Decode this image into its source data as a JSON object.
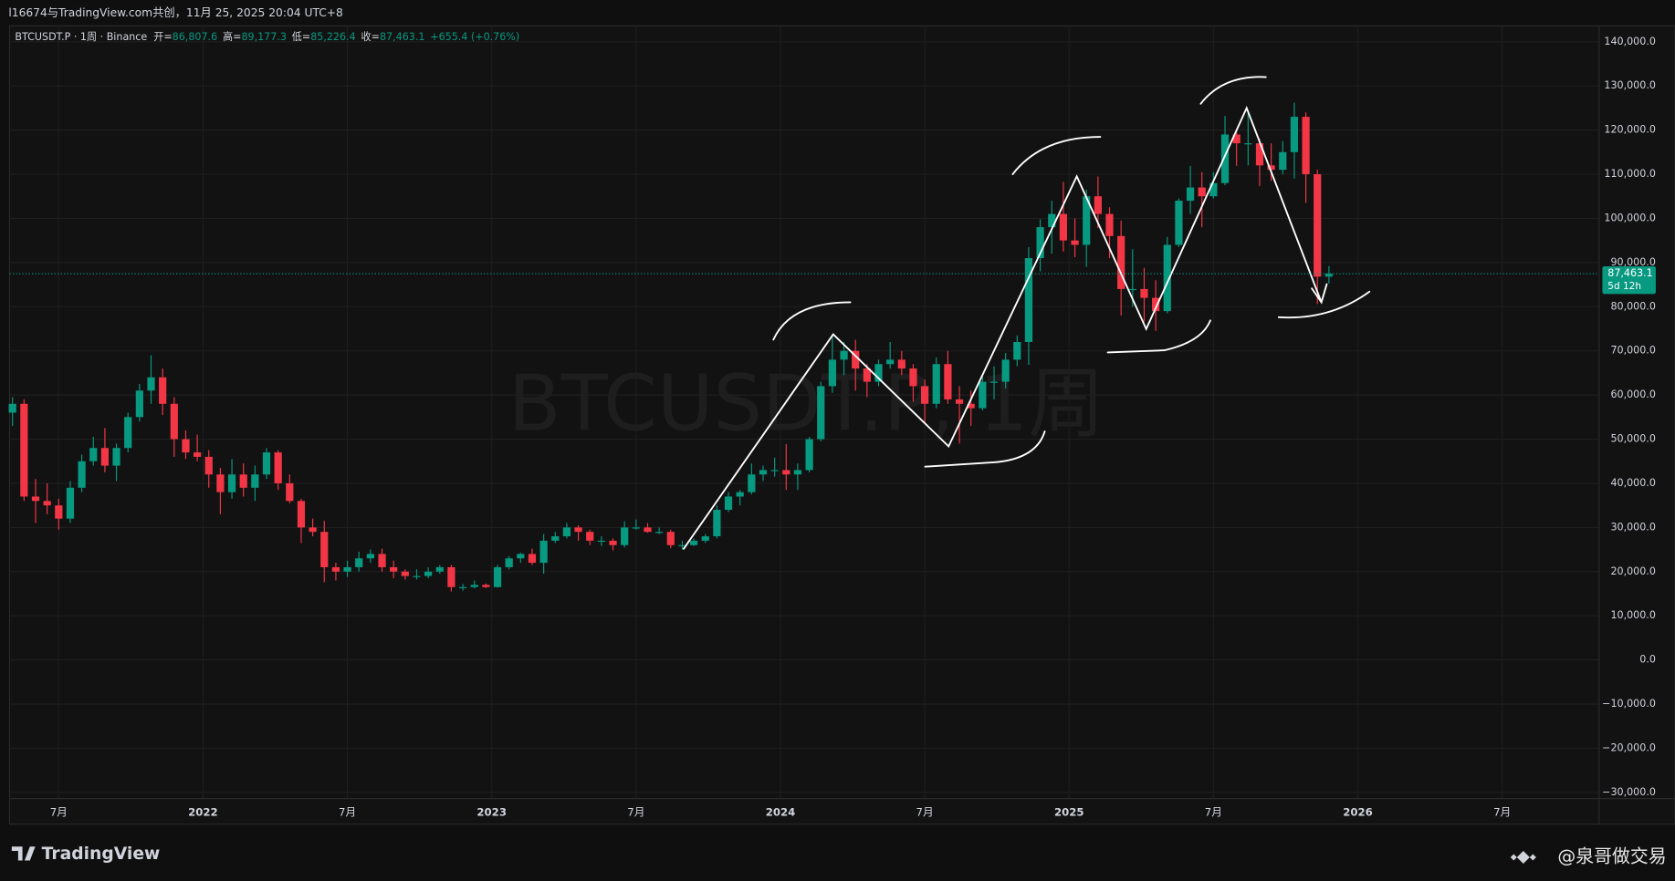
{
  "header": {
    "title": "l16674与TradingView.com共创，11月 25, 2025 20:04 UTC+8"
  },
  "chart_data": {
    "type": "candlestick",
    "symbol": "BTCUSDT.P · 1周 · Binance",
    "ohlc_legend": [
      {
        "label": "开=",
        "value": "86,807.6"
      },
      {
        "label": "高=",
        "value": "89,177.3"
      },
      {
        "label": "低=",
        "value": "85,226.4"
      },
      {
        "label": "收=",
        "value": "87,463.1"
      }
    ],
    "change": "+655.4 (+0.76%)",
    "watermark": "BTCUSDT.P, 1周",
    "up_color": "#089981",
    "down_color": "#f23645",
    "x": [
      2021.34,
      2021.38,
      2021.42,
      2021.46,
      2021.5,
      2021.54,
      2021.58,
      2021.62,
      2021.66,
      2021.7,
      2021.74,
      2021.78,
      2021.82,
      2021.86,
      2021.9,
      2021.94,
      2021.98,
      2022.02,
      2022.06,
      2022.1,
      2022.14,
      2022.18,
      2022.22,
      2022.26,
      2022.3,
      2022.34,
      2022.38,
      2022.42,
      2022.46,
      2022.5,
      2022.54,
      2022.58,
      2022.62,
      2022.66,
      2022.7,
      2022.74,
      2022.78,
      2022.82,
      2022.86,
      2022.9,
      2022.94,
      2022.98,
      2023.02,
      2023.06,
      2023.1,
      2023.14,
      2023.18,
      2023.22,
      2023.26,
      2023.3,
      2023.34,
      2023.38,
      2023.42,
      2023.46,
      2023.5,
      2023.54,
      2023.58,
      2023.62,
      2023.66,
      2023.7,
      2023.74,
      2023.78,
      2023.82,
      2023.86,
      2023.9,
      2023.94,
      2023.98,
      2024.02,
      2024.06,
      2024.1,
      2024.14,
      2024.18,
      2024.22,
      2024.26,
      2024.3,
      2024.34,
      2024.38,
      2024.42,
      2024.46,
      2024.5,
      2024.54,
      2024.58,
      2024.62,
      2024.66,
      2024.7,
      2024.74,
      2024.78,
      2024.82,
      2024.86,
      2024.9,
      2024.94,
      2024.98,
      2025.02,
      2025.06,
      2025.1,
      2025.14,
      2025.18,
      2025.22,
      2025.26,
      2025.3,
      2025.34,
      2025.38,
      2025.42,
      2025.46,
      2025.5,
      2025.54,
      2025.58,
      2025.62,
      2025.66,
      2025.7,
      2025.74,
      2025.78,
      2025.82,
      2025.86,
      2025.9
    ],
    "values": [
      [
        56000,
        59500,
        53000,
        58000
      ],
      [
        58000,
        59000,
        36000,
        37000
      ],
      [
        37000,
        41000,
        31000,
        36000
      ],
      [
        36000,
        40000,
        33000,
        35000
      ],
      [
        35000,
        36500,
        29500,
        32000
      ],
      [
        32000,
        40500,
        31000,
        39000
      ],
      [
        39000,
        46500,
        38000,
        45000
      ],
      [
        45000,
        50500,
        44000,
        48000
      ],
      [
        48000,
        52500,
        42500,
        44000
      ],
      [
        44000,
        49000,
        40500,
        48000
      ],
      [
        48000,
        56000,
        47000,
        55000
      ],
      [
        55000,
        62500,
        54000,
        61000
      ],
      [
        61000,
        69000,
        58000,
        64000
      ],
      [
        64000,
        66000,
        55500,
        58000
      ],
      [
        58000,
        59500,
        46000,
        50000
      ],
      [
        50000,
        52000,
        45500,
        47000
      ],
      [
        47000,
        51000,
        45000,
        46000
      ],
      [
        46000,
        47500,
        39000,
        42000
      ],
      [
        42000,
        43500,
        33000,
        38000
      ],
      [
        38000,
        45500,
        36500,
        42000
      ],
      [
        42000,
        44500,
        37000,
        39000
      ],
      [
        39000,
        44000,
        36000,
        42000
      ],
      [
        42000,
        48000,
        41000,
        47000
      ],
      [
        47000,
        47500,
        38500,
        40000
      ],
      [
        40000,
        42000,
        35500,
        36000
      ],
      [
        36000,
        36500,
        26500,
        30000
      ],
      [
        30000,
        32000,
        28000,
        29000
      ],
      [
        29000,
        31500,
        17600,
        21000
      ],
      [
        21000,
        22000,
        18000,
        20000
      ],
      [
        20000,
        22500,
        18800,
        21000
      ],
      [
        21000,
        24500,
        20000,
        23000
      ],
      [
        23000,
        25000,
        22000,
        24000
      ],
      [
        24000,
        25200,
        20000,
        21000
      ],
      [
        21000,
        22500,
        18500,
        20000
      ],
      [
        20000,
        20500,
        18200,
        19000
      ],
      [
        19000,
        20500,
        18200,
        19000
      ],
      [
        19000,
        21000,
        18500,
        20000
      ],
      [
        20000,
        21500,
        19500,
        21000
      ],
      [
        21000,
        21500,
        15500,
        16500
      ],
      [
        16500,
        17200,
        15700,
        16500
      ],
      [
        16500,
        18000,
        16200,
        17000
      ],
      [
        17000,
        17300,
        16300,
        16500
      ],
      [
        16500,
        21500,
        16400,
        21000
      ],
      [
        21000,
        23500,
        20500,
        23000
      ],
      [
        23000,
        24300,
        22000,
        24000
      ],
      [
        24000,
        25200,
        21500,
        22000
      ],
      [
        22000,
        28500,
        19500,
        27000
      ],
      [
        27000,
        29000,
        26500,
        28000
      ],
      [
        28000,
        31000,
        27500,
        30000
      ],
      [
        30000,
        30500,
        27000,
        29000
      ],
      [
        29000,
        29500,
        26000,
        27000
      ],
      [
        27000,
        28000,
        25800,
        27000
      ],
      [
        27000,
        27500,
        24800,
        26000
      ],
      [
        26000,
        31400,
        25500,
        30000
      ],
      [
        30000,
        31800,
        29500,
        30000
      ],
      [
        30000,
        31000,
        28800,
        29000
      ],
      [
        29000,
        30000,
        28500,
        29000
      ],
      [
        29000,
        29500,
        25300,
        26000
      ],
      [
        26000,
        27000,
        25000,
        26000
      ],
      [
        26000,
        27500,
        25800,
        27000
      ],
      [
        27000,
        28500,
        26500,
        28000
      ],
      [
        28000,
        35000,
        27500,
        34000
      ],
      [
        34000,
        38000,
        33500,
        37000
      ],
      [
        37000,
        38500,
        35000,
        38000
      ],
      [
        38000,
        44500,
        37500,
        42000
      ],
      [
        42000,
        44000,
        40500,
        43000
      ],
      [
        43000,
        45800,
        41500,
        43000
      ],
      [
        43000,
        48900,
        38500,
        42000
      ],
      [
        42000,
        44500,
        38500,
        43000
      ],
      [
        43000,
        50500,
        42500,
        50000
      ],
      [
        50000,
        63000,
        49500,
        62000
      ],
      [
        62000,
        73800,
        60500,
        68000
      ],
      [
        68000,
        72000,
        64500,
        70000
      ],
      [
        70000,
        72500,
        61000,
        66000
      ],
      [
        66000,
        67000,
        59500,
        63000
      ],
      [
        63000,
        68000,
        62000,
        67000
      ],
      [
        67000,
        72000,
        66000,
        68000
      ],
      [
        68000,
        70000,
        64500,
        66000
      ],
      [
        66000,
        67000,
        58500,
        62000
      ],
      [
        62000,
        63500,
        53500,
        58000
      ],
      [
        58000,
        68500,
        57000,
        67000
      ],
      [
        67000,
        70000,
        58000,
        59000
      ],
      [
        59000,
        62000,
        49000,
        58000
      ],
      [
        58000,
        61000,
        53000,
        57000
      ],
      [
        57000,
        64500,
        56500,
        63000
      ],
      [
        63000,
        66500,
        59000,
        63000
      ],
      [
        63000,
        69500,
        61500,
        68000
      ],
      [
        68000,
        73500,
        66500,
        72000
      ],
      [
        72000,
        93500,
        66800,
        91000
      ],
      [
        91000,
        99800,
        88000,
        98000
      ],
      [
        98000,
        104000,
        92000,
        101000
      ],
      [
        101000,
        108300,
        92500,
        95000
      ],
      [
        95000,
        100000,
        91200,
        94000
      ],
      [
        94000,
        106500,
        89000,
        105000
      ],
      [
        105000,
        109500,
        97800,
        101000
      ],
      [
        101000,
        102500,
        91000,
        96000
      ],
      [
        96000,
        99500,
        78000,
        84000
      ],
      [
        84000,
        93000,
        80000,
        84000
      ],
      [
        84000,
        88800,
        76600,
        82000
      ],
      [
        82000,
        86000,
        74500,
        79000
      ],
      [
        79000,
        95800,
        78500,
        94000
      ],
      [
        94000,
        104500,
        93500,
        104000
      ],
      [
        104000,
        111900,
        101000,
        107000
      ],
      [
        107000,
        110500,
        98000,
        105000
      ],
      [
        105000,
        110500,
        104500,
        108000
      ],
      [
        108000,
        123200,
        107500,
        119000
      ],
      [
        119000,
        120000,
        111900,
        117000
      ],
      [
        117000,
        124500,
        112000,
        117000
      ],
      [
        117000,
        118000,
        107300,
        112000
      ],
      [
        112000,
        117000,
        108500,
        111000
      ],
      [
        111000,
        117500,
        110000,
        115000
      ],
      [
        115000,
        126200,
        109000,
        123000
      ],
      [
        123000,
        124000,
        103500,
        110000
      ],
      [
        110000,
        111000,
        80600,
        86800
      ],
      [
        86807.6,
        89177.3,
        85226.4,
        87463.1
      ]
    ],
    "xlim": [
      2021.33,
      2026.836
    ],
    "xticks": [
      {
        "value": 2021.5,
        "label": "7月"
      },
      2022,
      {
        "value": 2022.5,
        "label": "7月"
      },
      2023,
      {
        "value": 2023.5,
        "label": "7月"
      },
      2024,
      {
        "value": 2024.5,
        "label": "7月"
      },
      2025,
      {
        "value": 2025.5,
        "label": "7月"
      },
      2026,
      {
        "value": 2026.5,
        "label": "7月"
      }
    ],
    "ylim": [
      -31400,
      143600
    ],
    "yticks": [
      {
        "value": 140000,
        "label": "140,000.0"
      },
      {
        "value": 130000,
        "label": "130,000.0"
      },
      {
        "value": 120000,
        "label": "120,000.0"
      },
      {
        "value": 110000,
        "label": "110,000.0"
      },
      {
        "value": 100000,
        "label": "100,000.0"
      },
      {
        "value": 90000,
        "label": "90,000.0"
      },
      {
        "value": 80000,
        "label": "80,000.0"
      },
      {
        "value": 70000,
        "label": "70,000.0"
      },
      {
        "value": 60000,
        "label": "60,000.0"
      },
      {
        "value": 50000,
        "label": "50,000.0"
      },
      {
        "value": 40000,
        "label": "40,000.0"
      },
      {
        "value": 30000,
        "label": "30,000.0"
      },
      {
        "value": 20000,
        "label": "20,000.0"
      },
      {
        "value": 10000,
        "label": "10,000.0"
      },
      {
        "value": 0,
        "label": "0.0"
      },
      {
        "value": -10000,
        "label": "−10,000.0"
      },
      {
        "value": -20000,
        "label": "−20,000.0"
      },
      {
        "value": -30000,
        "label": "−30,000.0"
      }
    ],
    "grid": true,
    "last_price": {
      "value": 87463.1,
      "label": "87,463.1"
    },
    "countdown": "5d 12h"
  },
  "footer": {
    "brand": "TradingView",
    "author": "@泉哥做交易"
  }
}
